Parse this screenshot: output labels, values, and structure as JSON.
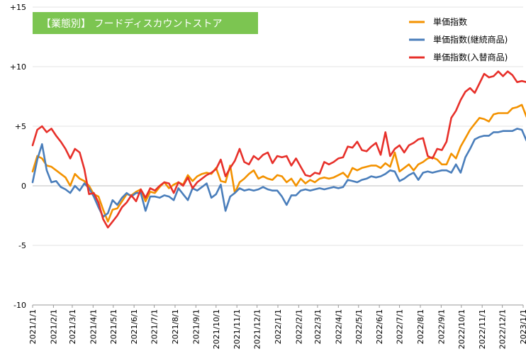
{
  "chart_data": {
    "type": "line",
    "title": "【業態別】 フードディスカウントストア",
    "title_bg": "#7cc551",
    "ylim": [
      -10,
      15
    ],
    "yticks": [
      {
        "value": 15,
        "label": "+15"
      },
      {
        "value": 10,
        "label": "+10"
      },
      {
        "value": 5,
        "label": "+5"
      },
      {
        "value": 0,
        "label": "0"
      },
      {
        "value": -5,
        "label": "-5"
      },
      {
        "value": -10,
        "label": "-10"
      }
    ],
    "gridlines": "horizontal",
    "legend_position": "top-right",
    "x": [
      "2021/1/1",
      "2021/1/8",
      "2021/1/15",
      "2021/1/22",
      "2021/1/29",
      "2021/2/5",
      "2021/2/12",
      "2021/2/19",
      "2021/2/26",
      "2021/3/5",
      "2021/3/12",
      "2021/3/19",
      "2021/3/26",
      "2021/4/2",
      "2021/4/9",
      "2021/4/16",
      "2021/4/23",
      "2021/4/30",
      "2021/5/7",
      "2021/5/14",
      "2021/5/21",
      "2021/5/28",
      "2021/6/4",
      "2021/6/11",
      "2021/6/18",
      "2021/6/25",
      "2021/7/2",
      "2021/7/9",
      "2021/7/16",
      "2021/7/23",
      "2021/7/30",
      "2021/8/6",
      "2021/8/13",
      "2021/8/20",
      "2021/8/27",
      "2021/9/3",
      "2021/9/10",
      "2021/9/17",
      "2021/9/24",
      "2021/10/1",
      "2021/10/8",
      "2021/10/15",
      "2021/10/22",
      "2021/10/29",
      "2021/11/5",
      "2021/11/12",
      "2021/11/19",
      "2021/11/26",
      "2021/12/3",
      "2021/12/10",
      "2021/12/17",
      "2021/12/24",
      "2021/12/31",
      "2022/1/7",
      "2022/1/14",
      "2022/1/21",
      "2022/1/28",
      "2022/2/4",
      "2022/2/11",
      "2022/2/18",
      "2022/2/25",
      "2022/3/4",
      "2022/3/11",
      "2022/3/18",
      "2022/3/25",
      "2022/4/1",
      "2022/4/8",
      "2022/4/15",
      "2022/4/22",
      "2022/4/29",
      "2022/5/6",
      "2022/5/13",
      "2022/5/20",
      "2022/5/27",
      "2022/6/3",
      "2022/6/10",
      "2022/6/17",
      "2022/6/24",
      "2022/7/1",
      "2022/7/8",
      "2022/7/15",
      "2022/7/22",
      "2022/7/29",
      "2022/8/5",
      "2022/8/12",
      "2022/8/19",
      "2022/8/26",
      "2022/9/2",
      "2022/9/9",
      "2022/9/16",
      "2022/9/23",
      "2022/9/30",
      "2022/10/7",
      "2022/10/14",
      "2022/10/21",
      "2022/10/28",
      "2022/11/4",
      "2022/11/11",
      "2022/11/18",
      "2022/11/25",
      "2022/12/2",
      "2022/12/9",
      "2022/12/16",
      "2022/12/23",
      "2022/12/30",
      "2023/1/6"
    ],
    "xtick_labels": [
      "2021/1/1",
      "2021/2/1",
      "2021/3/1",
      "2021/4/1",
      "2021/5/1",
      "2021/6/1",
      "2021/7/1",
      "2021/8/1",
      "2021/9/1",
      "2021/10/1",
      "2021/11/1",
      "2021/12/1",
      "2022/1/1",
      "2022/2/1",
      "2022/3/1",
      "2022/4/1",
      "2022/5/1",
      "2022/6/1",
      "2022/7/1",
      "2022/8/1",
      "2022/9/1",
      "2022/10/1",
      "2022/11/1",
      "2022/12/1",
      "2023/1/1"
    ],
    "series": [
      {
        "name": "単価指数",
        "color": "#f39200",
        "values": [
          1.2,
          2.5,
          2.3,
          1.7,
          1.6,
          1.3,
          1.0,
          0.7,
          0.0,
          1.0,
          0.6,
          0.4,
          0.0,
          -0.7,
          -0.9,
          -2.0,
          -3.0,
          -2.0,
          -1.9,
          -1.3,
          -0.7,
          -0.8,
          -0.5,
          -0.3,
          -1.3,
          -0.5,
          -0.6,
          -0.1,
          0.3,
          -0.2,
          0.1,
          0.3,
          0.1,
          0.9,
          0.4,
          0.8,
          1.0,
          1.1,
          1.0,
          1.5,
          0.4,
          0.3,
          1.7,
          -0.6,
          0.3,
          0.6,
          1.0,
          1.3,
          0.6,
          0.8,
          0.6,
          0.5,
          0.9,
          0.8,
          0.3,
          0.6,
          0.0,
          0.6,
          0.2,
          0.5,
          0.3,
          0.6,
          0.7,
          0.6,
          0.7,
          0.9,
          1.1,
          0.7,
          1.5,
          1.3,
          1.5,
          1.6,
          1.7,
          1.7,
          1.5,
          1.9,
          1.6,
          2.8,
          1.2,
          1.5,
          1.8,
          1.3,
          1.8,
          2.0,
          2.3,
          2.4,
          2.2,
          1.8,
          1.8,
          2.7,
          2.3,
          3.3,
          4.0,
          4.7,
          5.2,
          5.7,
          5.6,
          5.4,
          6.0,
          6.1,
          6.1,
          6.1,
          6.5,
          6.6,
          6.8,
          5.8
        ]
      },
      {
        "name": "単価指数(継続商品)",
        "color": "#4a7ebb",
        "values": [
          0.3,
          2.2,
          3.5,
          1.3,
          0.3,
          0.4,
          -0.1,
          -0.3,
          -0.6,
          0.0,
          -0.4,
          0.2,
          -0.2,
          -0.9,
          -1.8,
          -2.6,
          -2.3,
          -1.2,
          -1.6,
          -1.0,
          -0.6,
          -0.9,
          -0.6,
          -0.6,
          -2.1,
          -0.9,
          -0.9,
          -1.0,
          -0.8,
          -0.9,
          -1.2,
          -0.2,
          -0.7,
          -1.2,
          -0.2,
          -0.4,
          -0.1,
          0.2,
          -1.0,
          -0.7,
          0.1,
          -2.1,
          -0.9,
          -0.6,
          -0.2,
          -0.4,
          -0.3,
          -0.4,
          -0.3,
          -0.1,
          -0.3,
          -0.4,
          -0.4,
          -0.9,
          -1.6,
          -0.8,
          -0.8,
          -0.4,
          -0.3,
          -0.4,
          -0.3,
          -0.2,
          -0.3,
          -0.2,
          -0.1,
          -0.2,
          -0.1,
          0.5,
          0.4,
          0.3,
          0.5,
          0.6,
          0.8,
          0.7,
          0.8,
          1.0,
          1.3,
          1.2,
          0.4,
          0.6,
          0.9,
          1.1,
          0.5,
          1.1,
          1.2,
          1.1,
          1.2,
          1.3,
          1.3,
          1.1,
          1.8,
          1.1,
          2.4,
          3.1,
          3.9,
          4.1,
          4.2,
          4.2,
          4.5,
          4.5,
          4.6,
          4.6,
          4.6,
          4.8,
          4.7,
          3.8
        ]
      },
      {
        "name": "単価指数(入替商品)",
        "color": "#e7302a",
        "values": [
          3.4,
          4.7,
          5.0,
          4.5,
          4.8,
          4.2,
          3.7,
          3.1,
          2.3,
          3.1,
          2.8,
          1.4,
          -0.7,
          -0.6,
          -1.4,
          -2.8,
          -3.5,
          -3.0,
          -2.5,
          -1.8,
          -1.4,
          -0.8,
          -1.3,
          -0.3,
          -1.0,
          -0.2,
          -0.4,
          0.0,
          0.3,
          0.2,
          -0.6,
          0.3,
          0.0,
          0.7,
          -0.2,
          0.3,
          0.6,
          0.9,
          1.1,
          1.4,
          2.2,
          0.8,
          1.5,
          2.1,
          3.1,
          2.0,
          1.8,
          2.5,
          2.2,
          2.6,
          2.8,
          1.9,
          2.5,
          2.4,
          2.5,
          1.7,
          2.3,
          1.6,
          0.9,
          0.8,
          1.1,
          1.0,
          2.0,
          1.8,
          2.0,
          2.3,
          2.4,
          3.3,
          3.2,
          3.7,
          3.0,
          2.9,
          3.3,
          3.6,
          2.6,
          4.5,
          2.5,
          3.1,
          3.4,
          2.8,
          3.4,
          3.6,
          3.9,
          4.0,
          2.5,
          2.3,
          3.1,
          3.0,
          3.7,
          5.7,
          6.3,
          7.2,
          7.9,
          8.2,
          7.8,
          8.6,
          9.4,
          9.1,
          9.2,
          9.6,
          9.2,
          9.6,
          9.3,
          8.7,
          8.8,
          8.7
        ]
      }
    ]
  }
}
